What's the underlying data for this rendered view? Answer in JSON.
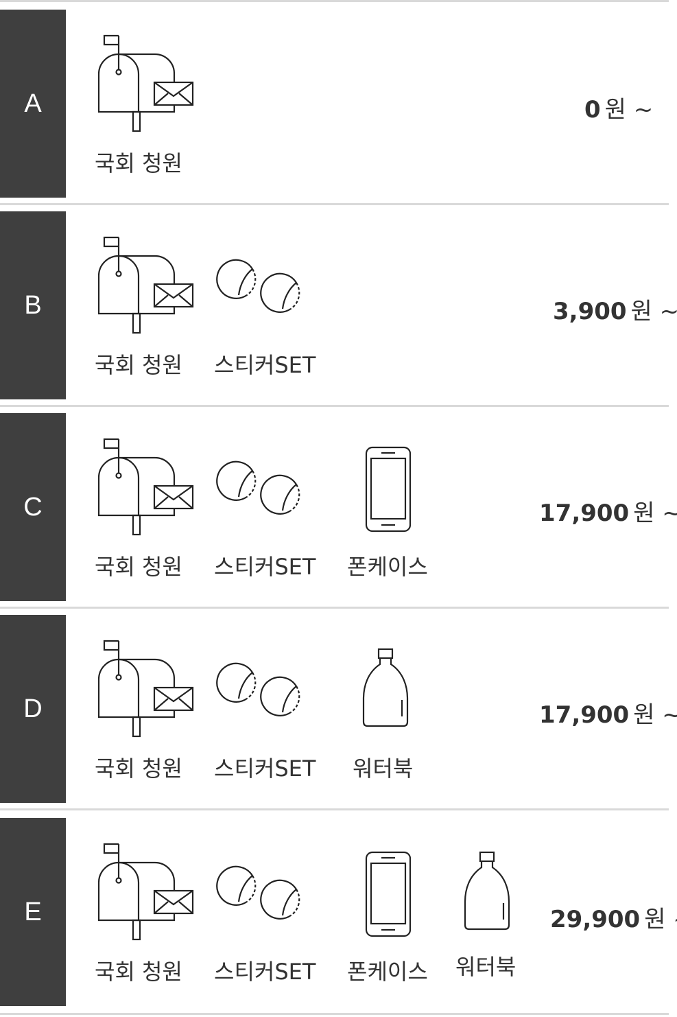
{
  "tiers": [
    {
      "letter": "A",
      "items": [
        "국회 청원"
      ],
      "price": "0",
      "unit": "원 ~"
    },
    {
      "letter": "B",
      "items": [
        "국회 청원",
        "스티커SET"
      ],
      "price": "3,900",
      "unit": "원 ~"
    },
    {
      "letter": "C",
      "items": [
        "국회 청원",
        "스티커SET",
        "폰케이스"
      ],
      "price": "17,900",
      "unit": "원 ~"
    },
    {
      "letter": "D",
      "items": [
        "국회 청원",
        "스티커SET",
        "워터북"
      ],
      "price": "17,900",
      "unit": "원 ~"
    },
    {
      "letter": "E",
      "items": [
        "국회 청원",
        "스티커SET",
        "폰케이스",
        "워터북"
      ],
      "price": "29,900",
      "unit": "원 ~"
    }
  ],
  "icons": {
    "국회 청원": "mailbox-icon",
    "스티커SET": "sticker-icon",
    "폰케이스": "phone-case-icon",
    "워터북": "water-bottle-icon"
  }
}
